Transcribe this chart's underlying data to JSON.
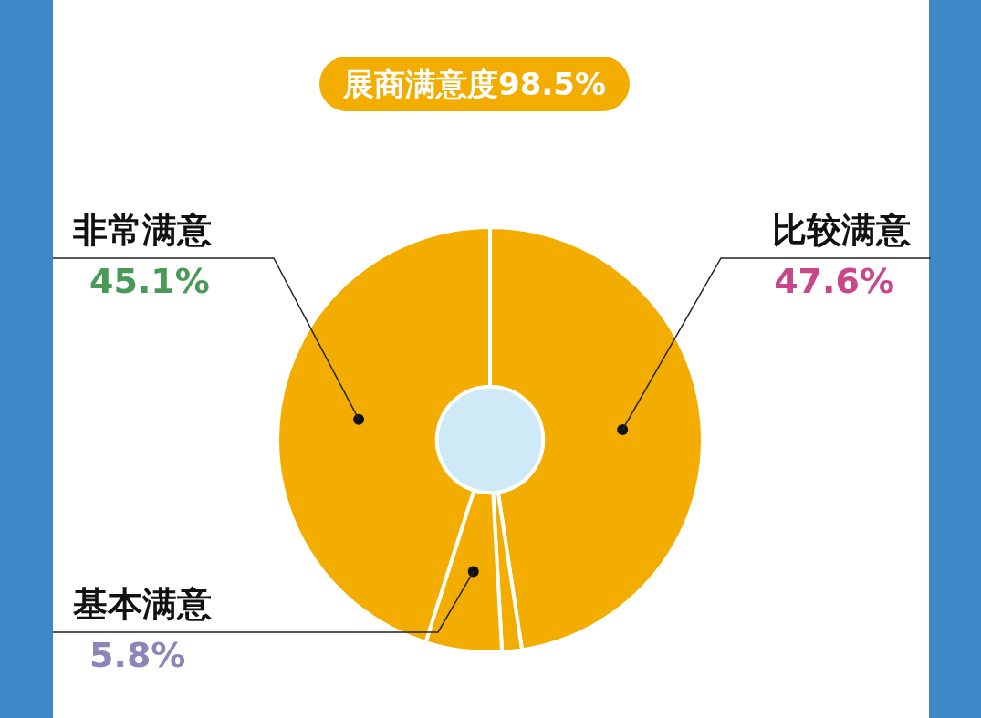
{
  "chart_data": {
    "type": "donut",
    "title": "展商满意度98.5%",
    "categories": [
      "比较满意",
      null,
      "基本满意",
      "非常满意"
    ],
    "values": [
      47.6,
      1.5,
      5.8,
      45.1
    ],
    "colors": [
      "#f2ad00",
      "#f2ad00",
      "#f2ad00",
      "#f2ad00"
    ],
    "value_labels": [
      "47.6%",
      null,
      "5.8%",
      "45.1%"
    ],
    "legend": false
  }
}
